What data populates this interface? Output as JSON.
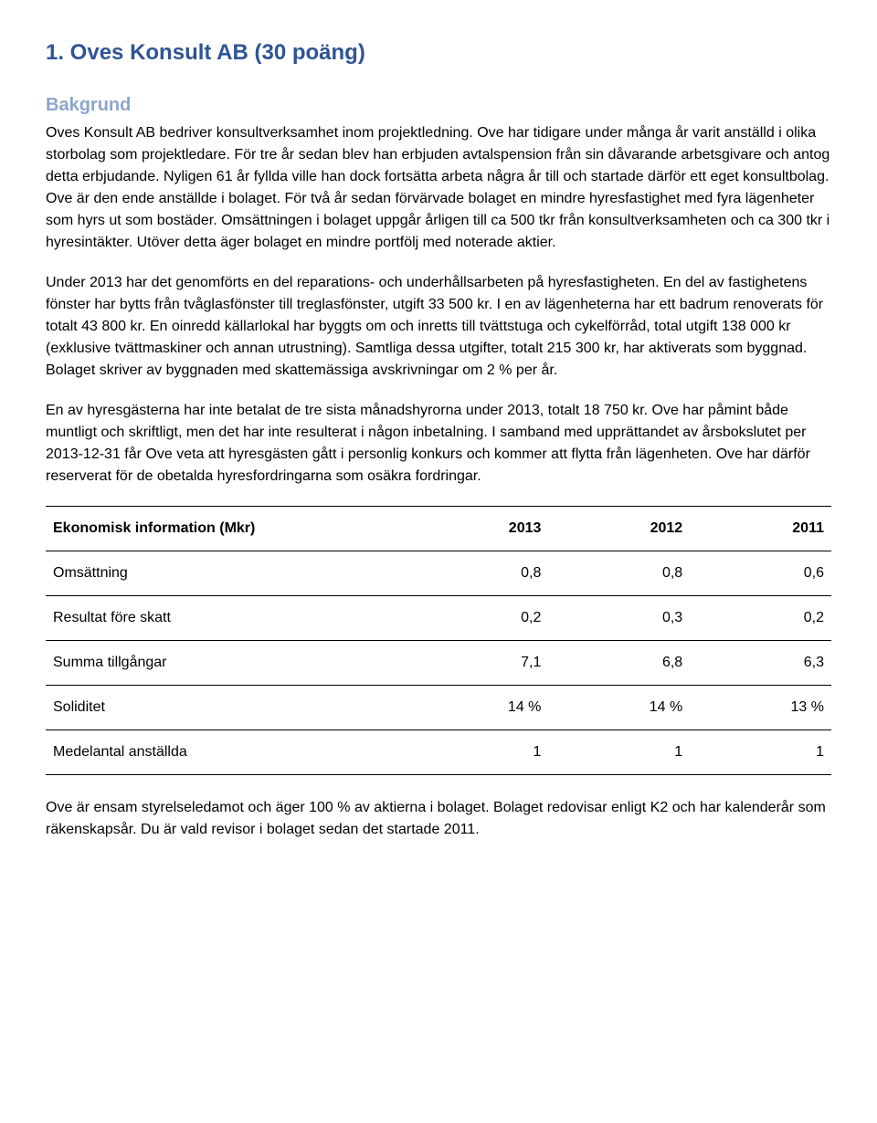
{
  "title": "1.  Oves Konsult AB (30 poäng)",
  "subheading": "Bakgrund",
  "paragraphs": {
    "p1": "Oves Konsult AB bedriver konsultverksamhet inom projektledning. Ove har tidigare under många år varit anställd i olika storbolag som projektledare. För tre år sedan blev han erbjuden avtalspension från sin dåvarande arbetsgivare och antog detta erbjudande. Nyligen 61 år fyllda ville han dock fortsätta arbeta några år till och startade därför ett eget konsultbolag. Ove är den ende anställde i bolaget. För två år sedan förvärvade bolaget en mindre hyresfastighet med fyra lägenheter som hyrs ut som bostäder. Omsättningen i bolaget uppgår årligen till ca 500 tkr från konsultverksamheten och ca 300 tkr i hyresintäkter. Utöver detta äger bolaget en mindre portfölj med noterade aktier.",
    "p2": "Under 2013 har det genomförts en del reparations- och underhållsarbeten på hyresfastigheten. En del av fastighetens fönster har bytts från tvåglasfönster till treglasfönster, utgift 33 500 kr. I en av lägenheterna har ett badrum renoverats för totalt 43 800 kr. En oinredd källarlokal har byggts om och inretts till tvättstuga och cykelförråd, total utgift 138 000 kr (exklusive tvättmaskiner och annan utrustning). Samtliga dessa utgifter, totalt 215 300 kr, har aktiverats som byggnad. Bolaget skriver av byggnaden med skattemässiga avskrivningar om 2 % per år.",
    "p3": "En av hyresgästerna har inte betalat de tre sista månadshyrorna under 2013, totalt 18 750 kr. Ove har påmint både muntligt och skriftligt, men det har inte resulterat i någon inbetalning. I samband med upprättandet av årsbokslutet per 2013-12-31 får Ove veta att hyresgästen gått i personlig konkurs och kommer att flytta från lägenheten. Ove har därför reserverat för de obetalda hyresfordringarna som osäkra fordringar.",
    "p4": "Ove är ensam styrelseledamot och äger 100 % av aktierna i bolaget. Bolaget redovisar enligt K2 och har kalenderår som räkenskapsår. Du är vald revisor i bolaget sedan det startade 2011."
  },
  "table": {
    "header": {
      "c0": "Ekonomisk information (Mkr)",
      "c1": "2013",
      "c2": "2012",
      "c3": "2011"
    },
    "rows": [
      {
        "c0": "Omsättning",
        "c1": "0,8",
        "c2": "0,8",
        "c3": "0,6"
      },
      {
        "c0": "Resultat före skatt",
        "c1": "0,2",
        "c2": "0,3",
        "c3": "0,2"
      },
      {
        "c0": "Summa tillgångar",
        "c1": "7,1",
        "c2": "6,8",
        "c3": "6,3"
      },
      {
        "c0": "Soliditet",
        "c1": "14 %",
        "c2": "14 %",
        "c3": "13 %"
      },
      {
        "c0": "Medelantal anställda",
        "c1": "1",
        "c2": "1",
        "c3": "1"
      }
    ]
  }
}
